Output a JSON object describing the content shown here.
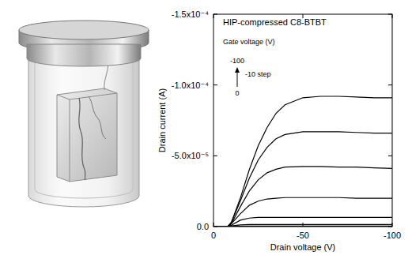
{
  "chart_data": {
    "type": "line",
    "title": "HIP-compressed C8-BTBT",
    "annotations": [
      "Gate voltage (V)",
      "-100",
      "-10 step",
      "0"
    ],
    "x_label": "Drain voltage (V)",
    "y_label": "Drain current (A)",
    "x": [
      0,
      -5,
      -8,
      -10,
      -15,
      -20,
      -25,
      -30,
      -35,
      -40,
      -50,
      -60,
      -70,
      -80,
      -90,
      -100
    ],
    "series": [
      {
        "color": "#000000",
        "values": [
          0,
          0,
          0,
          -3e-06,
          -2e-05,
          -4e-05,
          -5.7e-05,
          -7e-05,
          -8e-05,
          -8.6e-05,
          -9.1e-05,
          -9.2e-05,
          -9.2e-05,
          -9.15e-05,
          -9.1e-05,
          -9.1e-05
        ]
      },
      {
        "color": "#000000",
        "values": [
          0,
          0,
          0,
          -3e-06,
          -1.8e-05,
          -3.4e-05,
          -4.7e-05,
          -5.6e-05,
          -6.2e-05,
          -6.5e-05,
          -6.7e-05,
          -6.7e-05,
          -6.7e-05,
          -6.65e-05,
          -6.6e-05,
          -6.6e-05
        ]
      },
      {
        "color": "#000000",
        "values": [
          0,
          0,
          0,
          -2e-06,
          -1.4e-05,
          -2.5e-05,
          -3.3e-05,
          -3.8e-05,
          -4.05e-05,
          -4.2e-05,
          -4.25e-05,
          -4.25e-05,
          -4.2e-05,
          -4.2e-05,
          -4.15e-05,
          -4.1e-05
        ]
      },
      {
        "color": "#000000",
        "values": [
          0,
          0,
          0,
          -2e-06,
          -9e-06,
          -1.5e-05,
          -1.8e-05,
          -1.95e-05,
          -2e-05,
          -2.05e-05,
          -2.05e-05,
          -2.05e-05,
          -2.05e-05,
          -2e-05,
          -2e-05,
          -2e-05
        ]
      },
      {
        "color": "#000000",
        "values": [
          0,
          0,
          0,
          -1e-06,
          -4.5e-06,
          -6e-06,
          -6.5e-06,
          -6.5e-06,
          -6.5e-06,
          -6.5e-06,
          -6.5e-06,
          -6.5e-06,
          -6.5e-06,
          -6.5e-06,
          -6.5e-06,
          -6.5e-06
        ]
      },
      {
        "color": "#000000",
        "values": [
          0,
          0,
          0,
          -5e-07,
          -1.2e-06,
          -1.5e-06,
          -1.5e-06,
          -1.5e-06,
          -1.5e-06,
          -1.5e-06,
          -1.5e-06,
          -1.5e-06,
          -1.5e-06,
          -1.5e-06,
          -1.5e-06,
          -1.5e-06
        ]
      },
      {
        "color": "#000000",
        "values": [
          0,
          0,
          0,
          0,
          -2e-07,
          -3e-07,
          -3e-07,
          -3e-07,
          -3e-07,
          -3e-07,
          -3e-07,
          -3e-07,
          -3e-07,
          -3e-07,
          -3e-07,
          -3e-07
        ]
      },
      {
        "color": "#000000",
        "values": [
          0,
          0,
          0,
          0,
          0,
          0,
          0,
          0,
          0,
          0,
          0,
          0,
          0,
          0,
          0,
          0
        ]
      },
      {
        "color": "#000000",
        "values": [
          0,
          0,
          0,
          0,
          0,
          0,
          0,
          0,
          0,
          0,
          0,
          0,
          0,
          0,
          0,
          0
        ]
      },
      {
        "color": "#000000",
        "values": [
          0,
          0,
          0,
          0,
          0,
          0,
          0,
          0,
          0,
          0,
          0,
          0,
          0,
          0,
          0,
          0
        ]
      },
      {
        "color": "#000000",
        "values": [
          0,
          0,
          0,
          0,
          0,
          0,
          0,
          0,
          0,
          0,
          0,
          0,
          0,
          0,
          0,
          0
        ]
      }
    ],
    "xlim": [
      0,
      -100
    ],
    "xticks": [
      0,
      -50,
      -100
    ],
    "ylim": [
      0,
      -0.00015
    ],
    "yticks": [
      {
        "value": 0,
        "label": "0.0"
      },
      {
        "value": -5e-05,
        "label": "-5.0x10⁻⁵"
      },
      {
        "value": -0.0001,
        "label": "-1.0x10⁻⁴"
      },
      {
        "value": -0.00015,
        "label": "-1.5x10⁻⁴"
      }
    ],
    "grid": false,
    "line_style": "solid"
  }
}
